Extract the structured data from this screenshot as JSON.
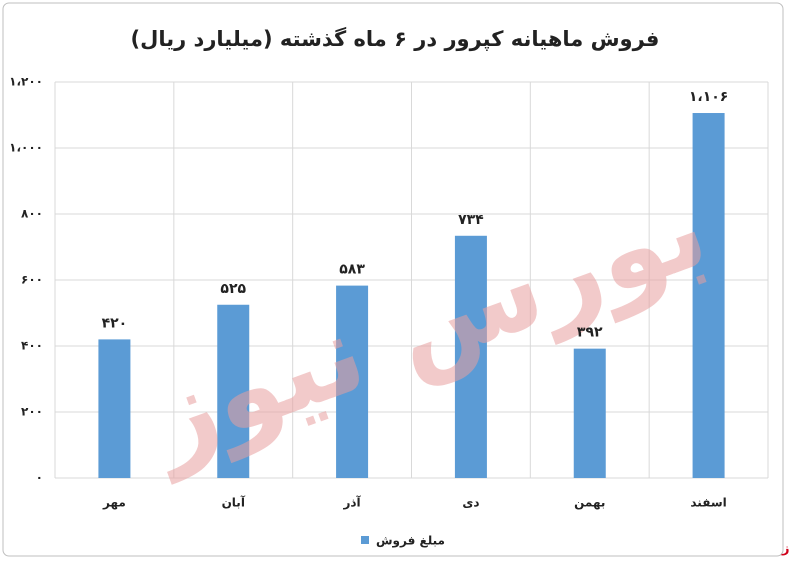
{
  "chart_data": {
    "type": "bar",
    "title": "فروش ماهیانه کپرور در ۶ ماه گذشته (میلیارد ریال)",
    "categories": [
      "مهر",
      "آبان",
      "آذر",
      "دی",
      "بهمن",
      "اسفند"
    ],
    "series": [
      {
        "name": "مبلغ فروش",
        "color": "#5b9bd5",
        "values": [
          420,
          525,
          583,
          734,
          392,
          1106
        ],
        "value_labels": [
          "۴۲۰",
          "۵۲۵",
          "۵۸۳",
          "۷۳۴",
          "۳۹۲",
          "۱،۱۰۶"
        ]
      }
    ],
    "ylim": [
      0,
      1200
    ],
    "yticks": [
      {
        "value": 0,
        "label": "۰"
      },
      {
        "value": 200,
        "label": "۲۰۰"
      },
      {
        "value": 400,
        "label": "۴۰۰"
      },
      {
        "value": 600,
        "label": "۶۰۰"
      },
      {
        "value": 800,
        "label": "۸۰۰"
      },
      {
        "value": 1000,
        "label": "۱،۰۰۰"
      },
      {
        "value": 1200,
        "label": "۱،۲۰۰"
      }
    ],
    "grid": true,
    "legend": "bottom",
    "watermark": "بورس نیوز",
    "source": "بورس نیوز"
  }
}
